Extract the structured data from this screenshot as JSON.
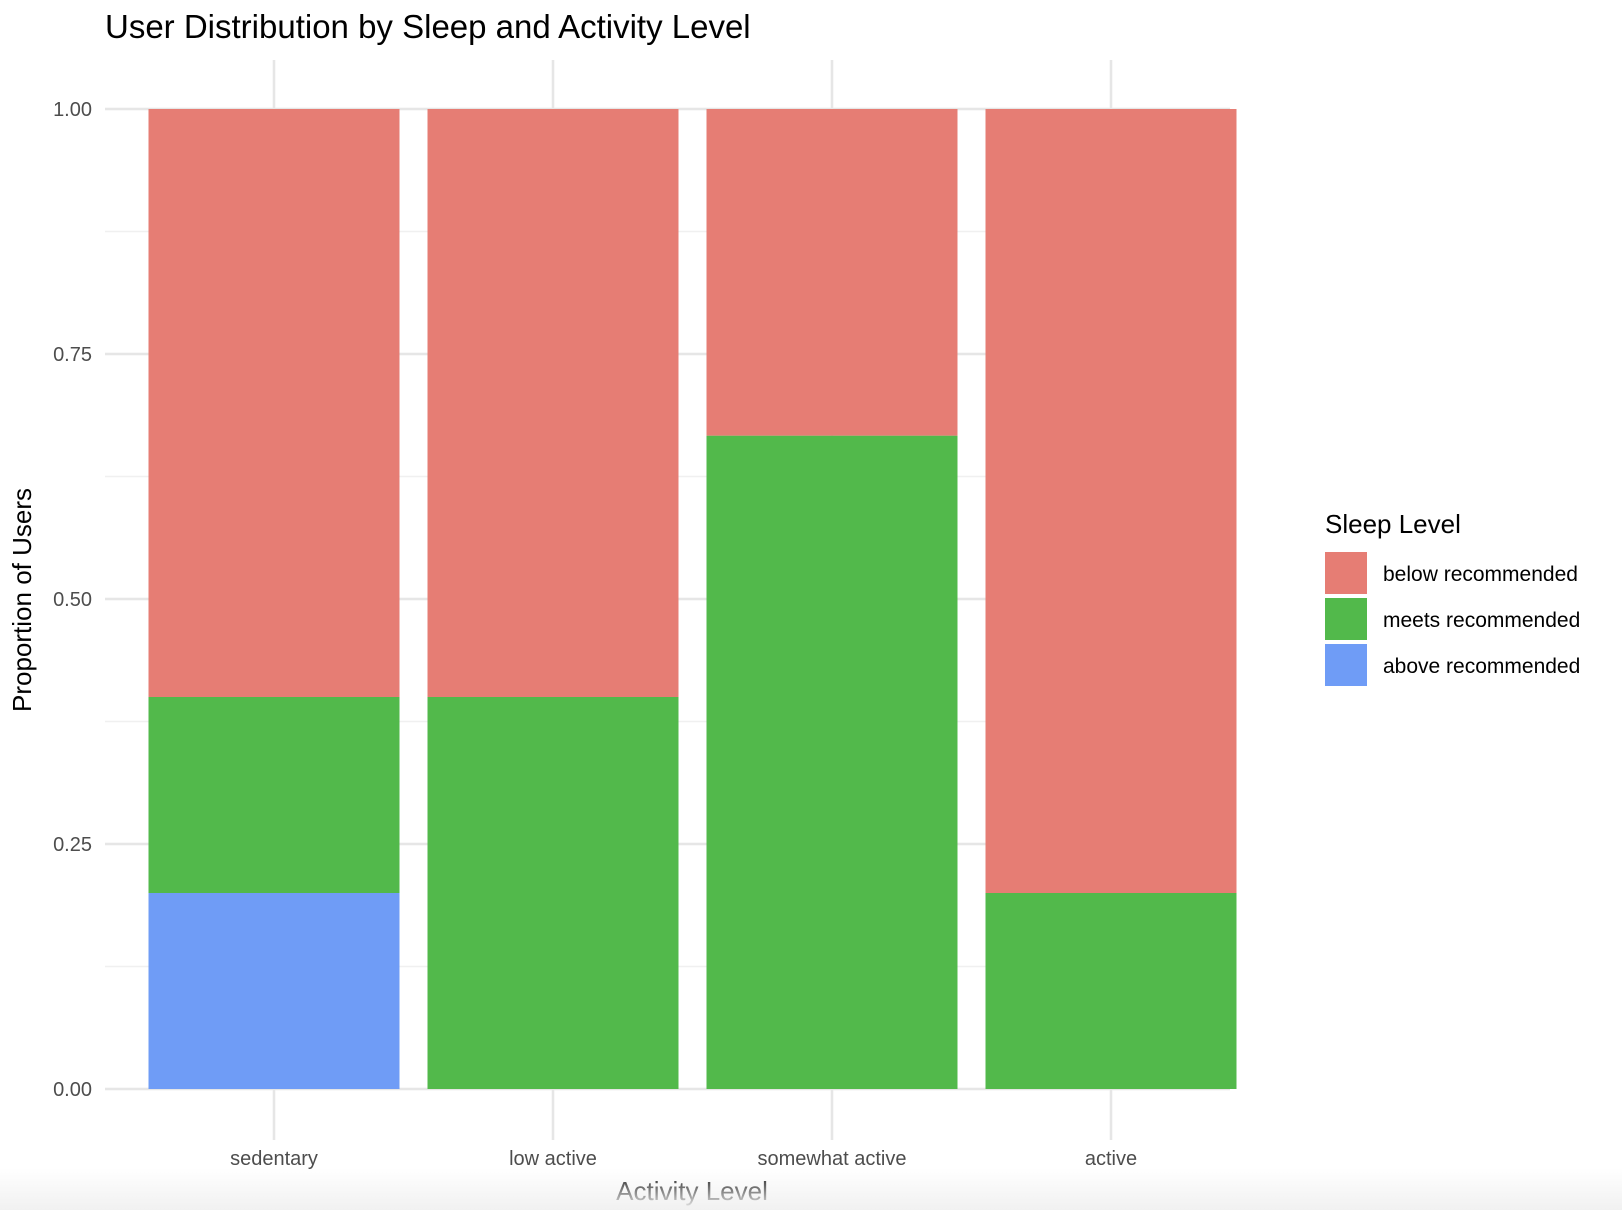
{
  "chart_data": {
    "type": "bar",
    "stacked": true,
    "title": "User Distribution by Sleep and Activity Level",
    "xlabel": "Activity Level",
    "ylabel": "Proportion of Users",
    "categories": [
      "sedentary",
      "low active",
      "somewhat active",
      "active"
    ],
    "y_ticks": [
      "0.00",
      "0.25",
      "0.50",
      "0.75",
      "1.00"
    ],
    "ylim": [
      0,
      1
    ],
    "grid": true,
    "legend": {
      "title": "Sleep Level",
      "position": "right"
    },
    "series": [
      {
        "name": "above recommended",
        "color": "#6f9cf6",
        "values": [
          0.2,
          0.0,
          0.0,
          0.0
        ]
      },
      {
        "name": "meets recommended",
        "color": "#52b94b",
        "values": [
          0.2,
          0.4,
          0.6667,
          0.2
        ]
      },
      {
        "name": "below recommended",
        "color": "#e67d74",
        "values": [
          0.6,
          0.6,
          0.3333,
          0.8
        ]
      }
    ],
    "legend_order": [
      "below recommended",
      "meets recommended",
      "above recommended"
    ]
  }
}
